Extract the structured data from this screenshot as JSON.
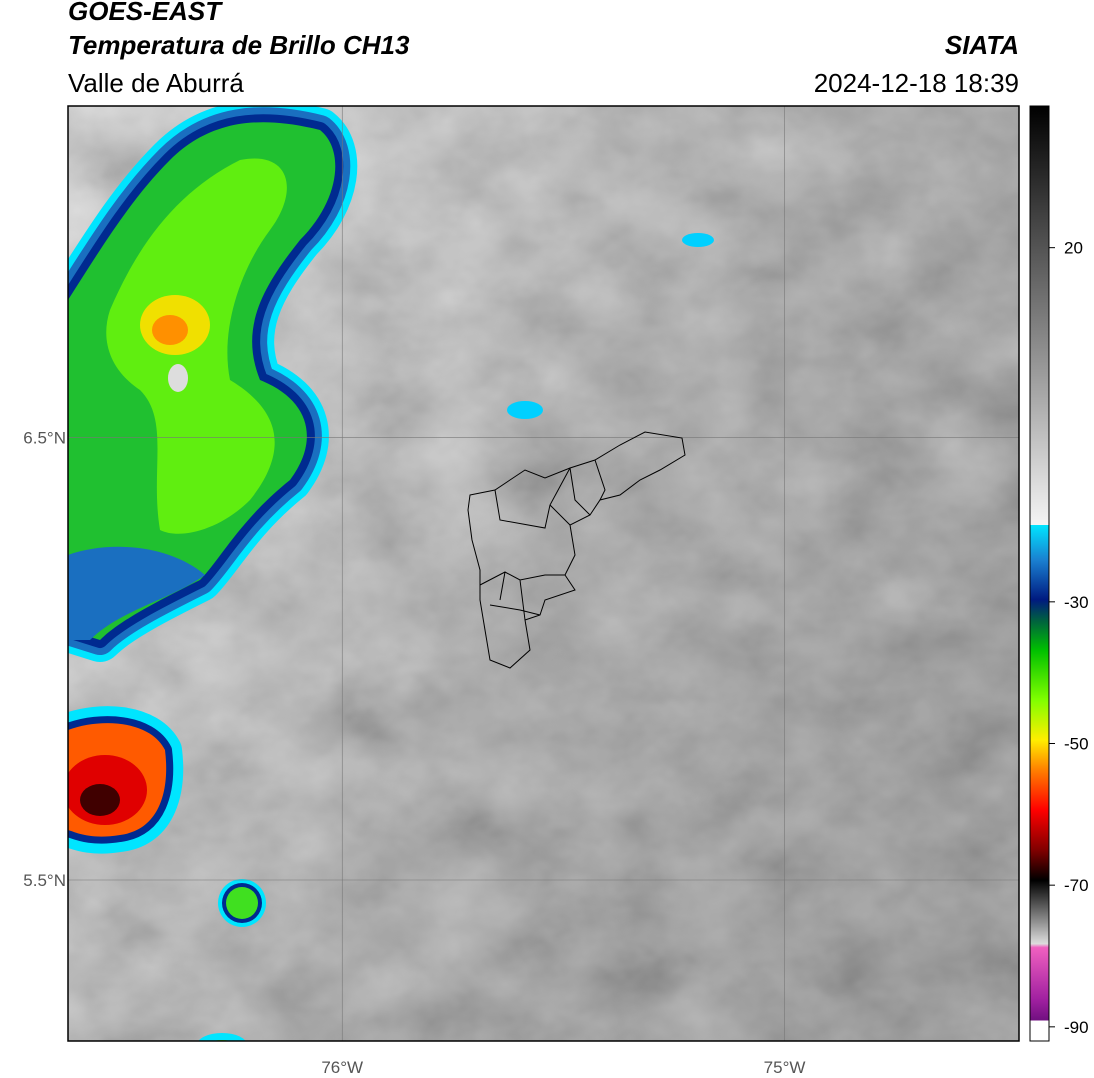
{
  "header": {
    "title": "GOES-EAST",
    "subtitle": "Temperatura de Brillo CH13",
    "region": "Valle de Aburrá",
    "source": "SIATA",
    "datetime": "2024-12-18 18:39"
  },
  "map": {
    "xlim": [
      -76.62,
      -74.47
    ],
    "ylim": [
      5.136,
      7.25
    ],
    "xticks": [
      {
        "value": -76,
        "label": "76°W"
      },
      {
        "value": -75,
        "label": "75°W"
      }
    ],
    "yticks": [
      {
        "value": 6.5,
        "label": "6.5°N"
      },
      {
        "value": 5.5,
        "label": "5.5°N"
      }
    ],
    "grid": true
  },
  "colorbar": {
    "lim": [
      -92,
      40
    ],
    "ticks": [
      20,
      -30,
      -50,
      -70,
      -90
    ]
  }
}
